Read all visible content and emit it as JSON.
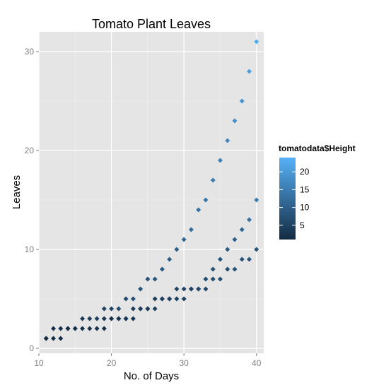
{
  "chart_data": {
    "type": "scatter",
    "title": "Tomato Plant Leaves",
    "xlabel": "No. of Days",
    "ylabel": "Leaves",
    "xlim": [
      10,
      41
    ],
    "ylim": [
      -0.5,
      32
    ],
    "x_ticks": [
      10,
      20,
      30,
      40
    ],
    "x_tick_labels": [
      "10",
      "20",
      "30",
      "40"
    ],
    "x_minor_ticks": [
      15,
      25,
      35
    ],
    "y_ticks": [
      0,
      10,
      20,
      30
    ],
    "y_tick_labels": [
      "0",
      "10",
      "20",
      "30"
    ],
    "y_minor_ticks": [
      5,
      15,
      25
    ],
    "grid": true,
    "panel_background": "#e5e5e5",
    "grid_color": "#ffffff",
    "legend": {
      "title": "tomatodata$Height",
      "placement": "right",
      "range": [
        1,
        24
      ],
      "ticks": [
        5,
        10,
        15,
        20
      ],
      "tick_labels": [
        "5",
        "10",
        "15",
        "20"
      ],
      "color_low": "#132b43",
      "color_high": "#56b1f7"
    },
    "series": [
      {
        "x": [
          11,
          12,
          13,
          14,
          15,
          16,
          17,
          18,
          19,
          20,
          21,
          22,
          23,
          24,
          25,
          26,
          27,
          28,
          29,
          30,
          31,
          32,
          33,
          34,
          35,
          36,
          37,
          38,
          39,
          40
        ],
        "y": [
          1,
          2,
          2,
          2,
          2,
          3,
          3,
          3,
          4,
          4,
          4,
          5,
          5,
          6,
          7,
          7,
          8,
          9,
          10,
          11,
          12,
          14,
          15,
          17,
          19,
          21,
          23,
          25,
          28,
          31
        ],
        "color_value": [
          1,
          1.5,
          2,
          2.5,
          3,
          3.5,
          4,
          4.5,
          5,
          5.5,
          6,
          6.5,
          7,
          7.5,
          8,
          8.5,
          9,
          9.5,
          10,
          11,
          12,
          13,
          14,
          15,
          16,
          17,
          18,
          19,
          21,
          23
        ]
      },
      {
        "x": [
          11,
          12,
          13,
          14,
          15,
          16,
          17,
          18,
          19,
          20,
          21,
          22,
          23,
          24,
          25,
          26,
          27,
          28,
          29,
          30,
          31,
          32,
          33,
          34,
          35,
          36,
          37,
          38,
          39,
          40
        ],
        "y": [
          1,
          1,
          1,
          2,
          2,
          2,
          2,
          2,
          3,
          3,
          3,
          3,
          4,
          4,
          4,
          4,
          5,
          5,
          6,
          6,
          6,
          6,
          7,
          7,
          7,
          8,
          8,
          9,
          9,
          10
        ],
        "color_value": [
          1,
          1,
          1.5,
          1.5,
          2,
          2,
          2.5,
          2.5,
          3,
          3,
          3.5,
          3.5,
          4,
          4,
          4.5,
          4.5,
          5,
          5,
          5.5,
          5.5,
          6,
          6,
          6.5,
          6.5,
          7,
          7,
          7.5,
          7.5,
          8,
          8
        ]
      },
      {
        "x": [
          19,
          20,
          21,
          22,
          23,
          24,
          25,
          26,
          27,
          28,
          29,
          30,
          31,
          32,
          33,
          34,
          35,
          36,
          37,
          38,
          39,
          40
        ],
        "y": [
          2,
          3,
          3,
          3,
          3,
          4,
          4,
          5,
          5,
          5,
          5,
          5,
          6,
          6,
          6,
          8,
          9,
          10,
          11,
          12,
          13,
          15
        ],
        "color_value": [
          2,
          2.5,
          2.5,
          3,
          3,
          3.5,
          3.5,
          4,
          4,
          4.5,
          4.5,
          5,
          5,
          5.5,
          6,
          7,
          8,
          9,
          10,
          11,
          13,
          15
        ]
      }
    ]
  }
}
